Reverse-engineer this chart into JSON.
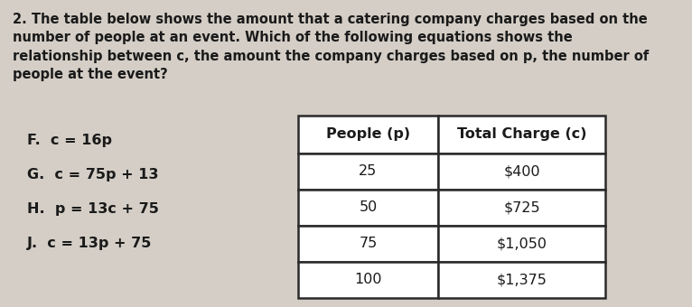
{
  "background_color": "#d4cec6",
  "question_text_lines": [
    "2. The table below shows the amount that a catering company charges based on the",
    "number of people at an event. Which of the following equations shows the",
    "relationship between c, the amount the company charges based on p, the number of",
    "people at the event?"
  ],
  "answer_choices": [
    "F.  c = 16p",
    "G.  c = 75p + 13",
    "H.  p = 13c + 75",
    "J.  c = 13p + 75"
  ],
  "table_header": [
    "People (p)",
    "Total Charge (c)"
  ],
  "table_data": [
    [
      "25",
      "$400"
    ],
    [
      "50",
      "$725"
    ],
    [
      "75",
      "$1,050"
    ],
    [
      "100",
      "$1,375"
    ]
  ],
  "text_color": "#1a1a1a",
  "table_bg": "#ffffff",
  "font_size_question": 10.5,
  "font_size_choices": 11.5,
  "font_size_table_header": 11.5,
  "font_size_table_data": 11.5
}
